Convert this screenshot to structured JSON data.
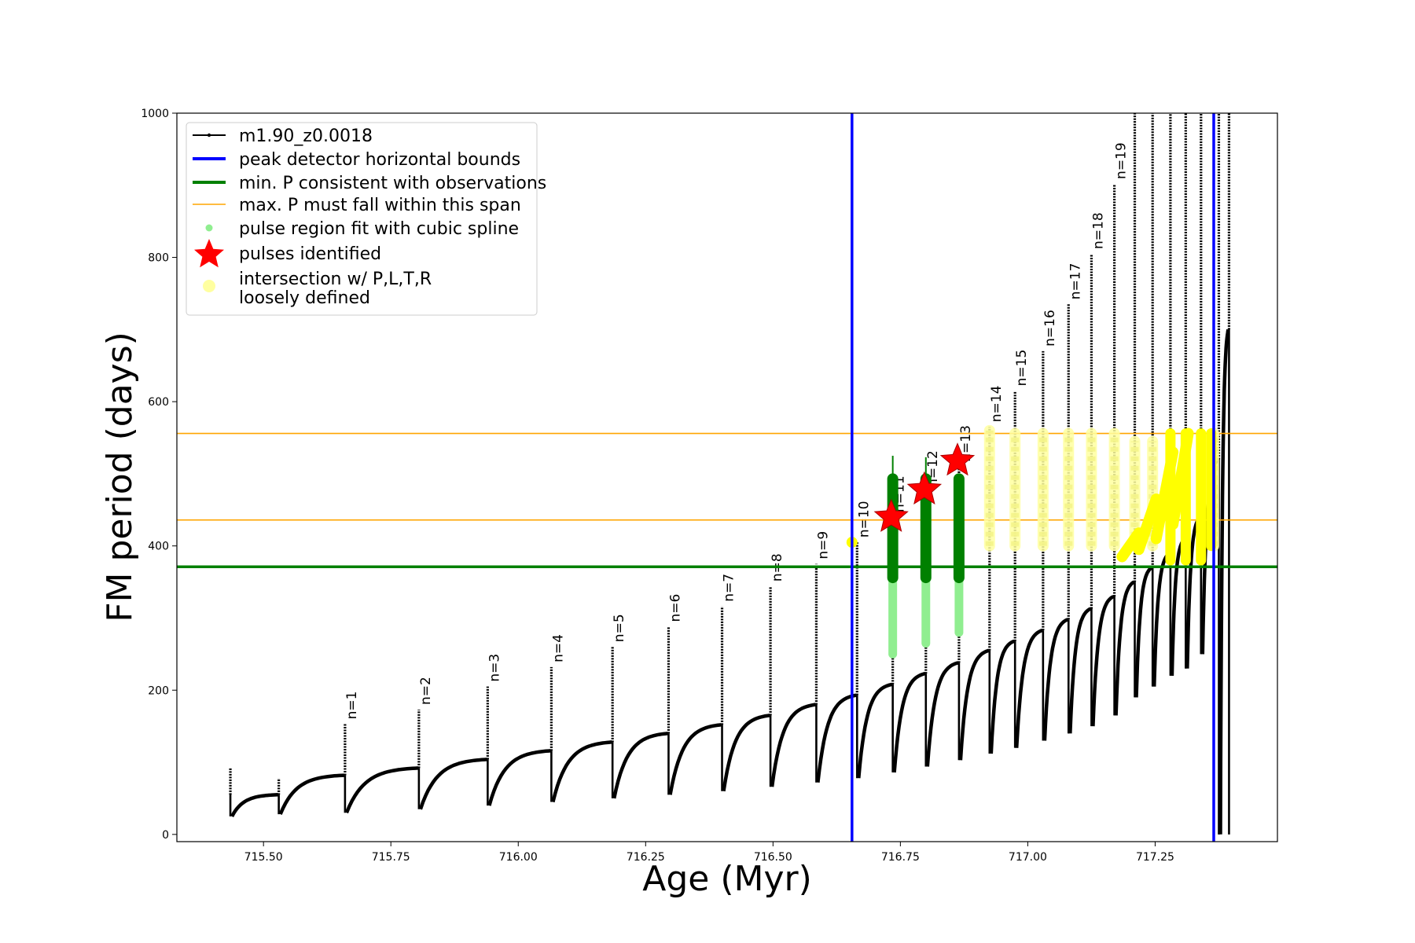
{
  "chart_data": {
    "type": "line",
    "xlabel": "Age (Myr)",
    "ylabel": "FM period (days)",
    "xlim": [
      715.33,
      717.49
    ],
    "ylim": [
      -10,
      1000
    ],
    "xticks": [
      715.5,
      715.75,
      716.0,
      716.25,
      716.5,
      716.75,
      717.0,
      717.25
    ],
    "xtick_labels": [
      "715.50",
      "715.75",
      "716.00",
      "716.25",
      "716.50",
      "716.75",
      "717.00",
      "717.25"
    ],
    "yticks": [
      0,
      200,
      400,
      600,
      800,
      1000
    ],
    "ytick_labels": [
      "0",
      "200",
      "400",
      "600",
      "800",
      "1000"
    ],
    "grid": false,
    "legend_position": "top-left",
    "legend": [
      {
        "label": "m1.90_z0.0018",
        "marker": "line-dot",
        "color": "#000000"
      },
      {
        "label": "peak detector horizontal bounds",
        "marker": "thick-line",
        "color": "#0000ff"
      },
      {
        "label": "min. P consistent with observations",
        "marker": "thick-line",
        "color": "#008000"
      },
      {
        "label": "max. P must fall within this span",
        "marker": "thin-line",
        "color": "#ffa500"
      },
      {
        "label": "pulse region fit with cubic spline",
        "marker": "dot",
        "color": "#90ee90"
      },
      {
        "label": "pulses identified",
        "marker": "star",
        "color": "#ff0000"
      },
      {
        "label": "intersection w/ P,L,T,R",
        "label2": "loosely defined",
        "marker": "circle",
        "color": "#ffffa0"
      }
    ],
    "vertical_lines": [
      {
        "x": 716.655,
        "color": "#0000ff",
        "meaning": "peak detector horizontal bounds"
      },
      {
        "x": 717.365,
        "color": "#0000ff",
        "meaning": "peak detector horizontal bounds"
      }
    ],
    "horizontal_lines": [
      {
        "y": 371,
        "color": "#008000",
        "meaning": "min. P consistent with observations"
      },
      {
        "y": 436,
        "color": "#ffa500",
        "meaning": "max. P span lower"
      },
      {
        "y": 556,
        "color": "#ffa500",
        "meaning": "max. P span upper"
      }
    ],
    "series": [
      {
        "name": "m1.90_z0.0018",
        "color": "#000000",
        "pulses": [
          {
            "x": 715.435,
            "base": 55,
            "peak": 93,
            "min": 25
          },
          {
            "x": 715.53,
            "base": 55,
            "peak": 78,
            "min": 28
          },
          {
            "x": 715.66,
            "base": 82,
            "peak": 153,
            "min": 30,
            "label": "n=1"
          },
          {
            "x": 715.805,
            "base": 92,
            "peak": 173,
            "min": 35,
            "label": "n=2"
          },
          {
            "x": 715.94,
            "base": 104,
            "peak": 205,
            "min": 40,
            "label": "n=3"
          },
          {
            "x": 716.065,
            "base": 116,
            "peak": 232,
            "min": 45,
            "label": "n=4"
          },
          {
            "x": 716.185,
            "base": 128,
            "peak": 260,
            "min": 50,
            "label": "n=5"
          },
          {
            "x": 716.295,
            "base": 140,
            "peak": 288,
            "min": 55,
            "label": "n=6"
          },
          {
            "x": 716.4,
            "base": 152,
            "peak": 316,
            "min": 60,
            "label": "n=7"
          },
          {
            "x": 716.495,
            "base": 165,
            "peak": 344,
            "min": 66,
            "label": "n=8"
          },
          {
            "x": 716.585,
            "base": 180,
            "peak": 375,
            "min": 72,
            "label": "n=9"
          },
          {
            "x": 716.665,
            "base": 193,
            "peak": 405,
            "min": 78,
            "label": "n=10"
          },
          {
            "x": 716.735,
            "base": 208,
            "peak": 440,
            "min": 86,
            "label": "n=11"
          },
          {
            "x": 716.8,
            "base": 223,
            "peak": 475,
            "min": 94,
            "label": "n=12"
          },
          {
            "x": 716.865,
            "base": 238,
            "peak": 510,
            "min": 103,
            "label": "n=13"
          },
          {
            "x": 716.925,
            "base": 255,
            "peak": 565,
            "min": 112,
            "label": "n=14"
          },
          {
            "x": 716.975,
            "base": 268,
            "peak": 615,
            "min": 120,
            "label": "n=15"
          },
          {
            "x": 717.03,
            "base": 283,
            "peak": 670,
            "min": 130,
            "label": "n=16"
          },
          {
            "x": 717.08,
            "base": 298,
            "peak": 735,
            "min": 140,
            "label": "n=17"
          },
          {
            "x": 717.125,
            "base": 313,
            "peak": 805,
            "min": 150,
            "label": "n=18"
          },
          {
            "x": 717.17,
            "base": 330,
            "peak": 902,
            "min": 165,
            "label": "n=19"
          },
          {
            "x": 717.21,
            "base": 350,
            "peak": 1000,
            "min": 190
          },
          {
            "x": 717.245,
            "base": 370,
            "peak": 1000,
            "min": 205
          },
          {
            "x": 717.28,
            "base": 390,
            "peak": 1000,
            "min": 220
          },
          {
            "x": 717.31,
            "base": 410,
            "peak": 1000,
            "min": 230
          },
          {
            "x": 717.34,
            "base": 440,
            "peak": 1000,
            "min": 250
          },
          {
            "x": 717.375,
            "base": 520,
            "peak": 1000,
            "min": 0
          },
          {
            "x": 717.395,
            "base": 700,
            "peak": 1000,
            "min": 0
          }
        ]
      },
      {
        "name": "pulse region fit with cubic spline",
        "color": "#90ee90",
        "segments": [
          {
            "x": 716.735,
            "y0": 250,
            "y1": 356
          },
          {
            "x": 716.8,
            "y0": 265,
            "y1": 356
          },
          {
            "x": 716.865,
            "y0": 280,
            "y1": 356
          }
        ]
      },
      {
        "name": "min. P consistent with observations",
        "color": "#008000",
        "segments": [
          {
            "x": 716.735,
            "y0": 356,
            "y1": 493,
            "whisker": 525
          },
          {
            "x": 716.8,
            "y0": 356,
            "y1": 493,
            "whisker": 523
          },
          {
            "x": 716.865,
            "y0": 356,
            "y1": 493
          }
        ]
      },
      {
        "name": "pulses identified",
        "color": "#ff0000",
        "points": [
          {
            "x": 716.732,
            "y": 440
          },
          {
            "x": 716.797,
            "y": 478
          },
          {
            "x": 716.862,
            "y": 518
          }
        ]
      },
      {
        "name": "intersection w/ P,L,T,R",
        "color": "#ffff00",
        "loose_columns": [
          {
            "x": 716.925,
            "y0": 400,
            "y1": 560
          },
          {
            "x": 716.975,
            "y0": 400,
            "y1": 556
          },
          {
            "x": 717.03,
            "y0": 400,
            "y1": 556
          },
          {
            "x": 717.08,
            "y0": 400,
            "y1": 556
          },
          {
            "x": 717.125,
            "y0": 400,
            "y1": 556
          },
          {
            "x": 717.17,
            "y0": 400,
            "y1": 556
          },
          {
            "x": 717.21,
            "y0": 400,
            "y1": 545
          },
          {
            "x": 717.245,
            "y0": 400,
            "y1": 545
          },
          {
            "x": 717.365,
            "y0": 400,
            "y1": 556
          }
        ],
        "solid_columns": [
          {
            "x": 717.28,
            "y0": 380,
            "y1": 556
          },
          {
            "x": 717.31,
            "y0": 380,
            "y1": 556
          },
          {
            "x": 717.34,
            "y0": 380,
            "y1": 556
          },
          {
            "x": 717.36,
            "y0": 400,
            "y1": 556
          }
        ],
        "ramps": [
          {
            "x0": 717.185,
            "x1": 717.218,
            "y0": 385,
            "y1": 418
          },
          {
            "x0": 717.218,
            "x1": 717.252,
            "y0": 395,
            "y1": 465
          },
          {
            "x0": 717.252,
            "x1": 717.285,
            "y0": 410,
            "y1": 530
          },
          {
            "x0": 717.285,
            "x1": 717.315,
            "y0": 430,
            "y1": 556
          }
        ],
        "points": [
          {
            "x": 716.655,
            "y": 405
          }
        ]
      }
    ]
  }
}
